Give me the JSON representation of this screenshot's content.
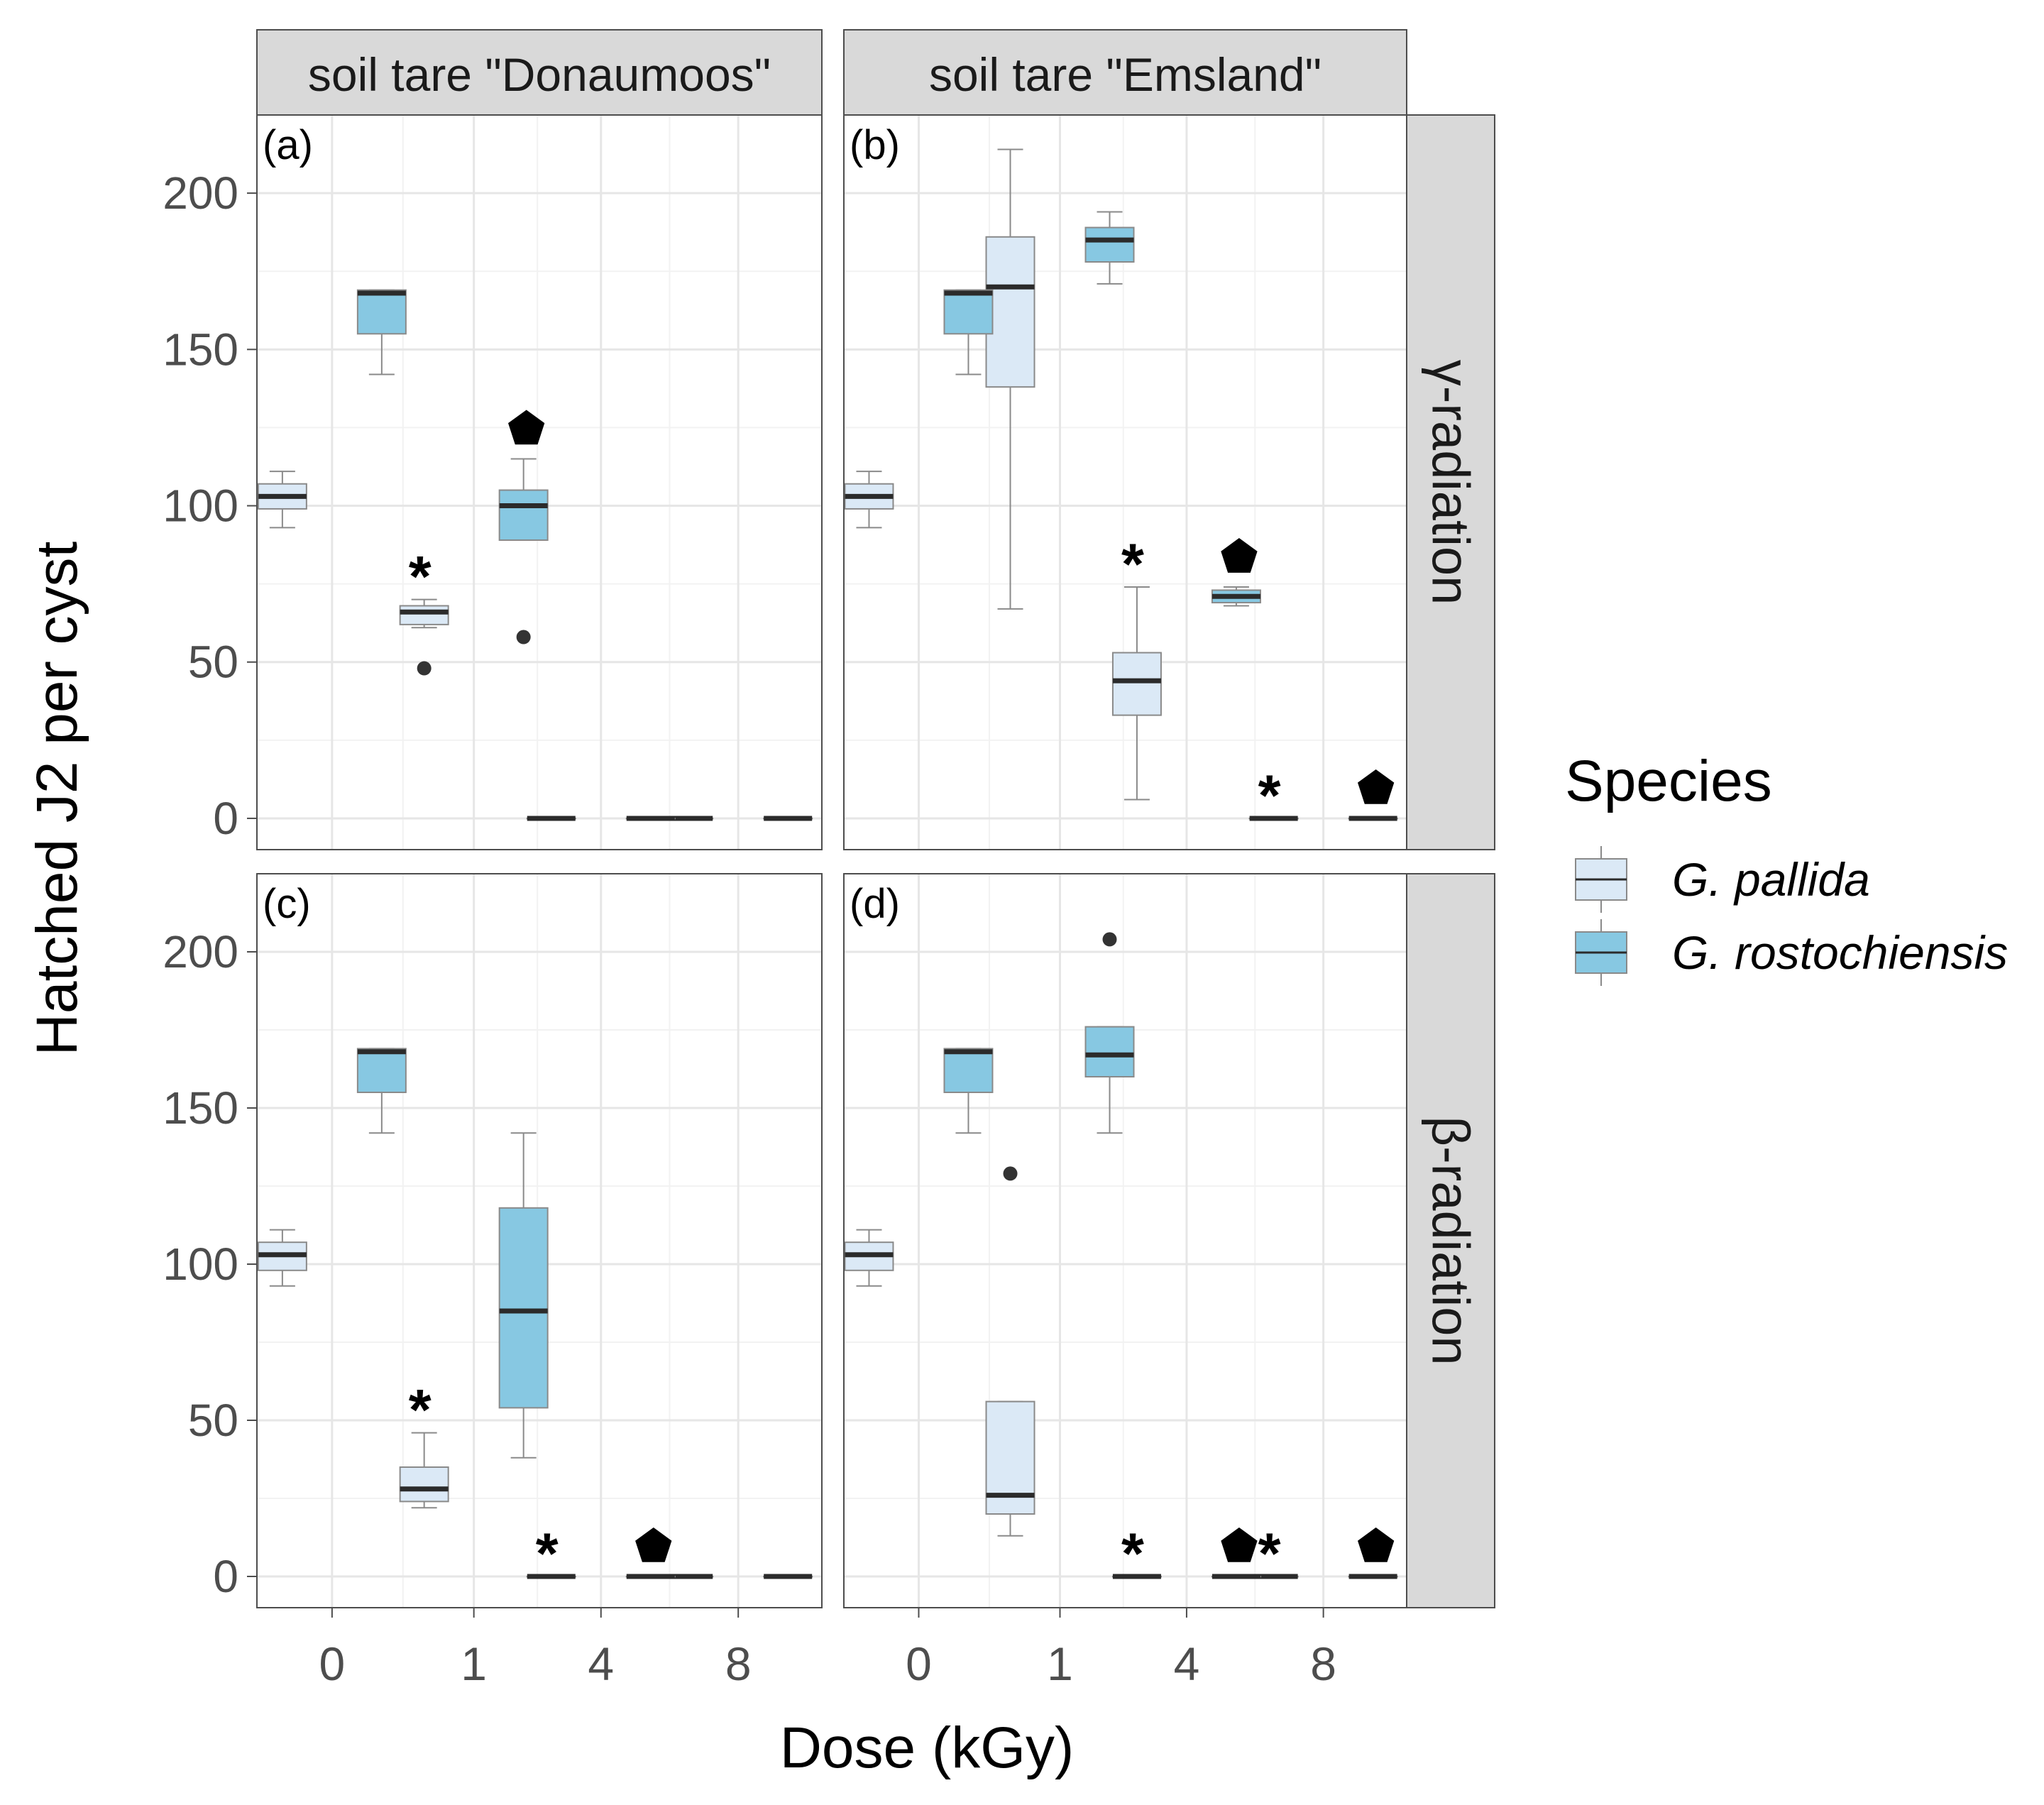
{
  "chart_data": {
    "type": "box",
    "xlabel": "Dose (kGy)",
    "ylabel": "Hatched J2 per cyst",
    "categories": [
      "0",
      "1",
      "4",
      "8"
    ],
    "y_ticks": [
      "0",
      "50",
      "100",
      "150",
      "200"
    ],
    "ylim": [
      -10,
      225
    ],
    "grid": true,
    "col_strips": [
      "soil tare \"Donaumoos\"",
      "soil tare \"Emsland\""
    ],
    "row_strips": [
      "γ-radiation",
      "β-radiation"
    ],
    "legend": {
      "title": "Species",
      "position": "right",
      "items": [
        {
          "label": "G. pallida",
          "color": "#dbe9f6"
        },
        {
          "label": "G. rostochiensis",
          "color": "#87c8e2"
        }
      ]
    },
    "panels": [
      {
        "tag": "(a)",
        "row": 0,
        "col": 0,
        "series": [
          {
            "name": "G. pallida",
            "boxes": [
              {
                "x": "0",
                "min": 93,
                "q1": 99,
                "median": 103,
                "q3": 107,
                "max": 111,
                "outliers": [],
                "mark": ""
              },
              {
                "x": "1",
                "min": 61,
                "q1": 62,
                "median": 66,
                "q3": 68,
                "max": 70,
                "outliers": [
                  48
                ],
                "mark": "*"
              },
              {
                "x": "4",
                "min": 0,
                "q1": 0,
                "median": 0,
                "q3": 0,
                "max": 0,
                "outliers": [],
                "mark": ""
              },
              {
                "x": "8",
                "min": 0,
                "q1": 0,
                "median": 0,
                "q3": 0,
                "max": 0,
                "outliers": [],
                "mark": ""
              }
            ]
          },
          {
            "name": "G. rostochiensis",
            "boxes": [
              {
                "x": "0",
                "min": 142,
                "q1": 155,
                "median": 168,
                "q3": 169,
                "max": 169,
                "outliers": [],
                "mark": ""
              },
              {
                "x": "1",
                "min": 89,
                "q1": 89,
                "median": 100,
                "q3": 105,
                "max": 115,
                "outliers": [
                  58
                ],
                "mark": "pentagon"
              },
              {
                "x": "4",
                "min": 0,
                "q1": 0,
                "median": 0,
                "q3": 0,
                "max": 0,
                "outliers": [],
                "mark": ""
              },
              {
                "x": "8",
                "min": 0,
                "q1": 0,
                "median": 0,
                "q3": 0,
                "max": 0,
                "outliers": [],
                "mark": ""
              }
            ]
          }
        ]
      },
      {
        "tag": "(b)",
        "row": 0,
        "col": 1,
        "series": [
          {
            "name": "G. pallida",
            "boxes": [
              {
                "x": "0",
                "min": 93,
                "q1": 99,
                "median": 103,
                "q3": 107,
                "max": 111,
                "outliers": [],
                "mark": ""
              },
              {
                "x": "1",
                "min": 67,
                "q1": 138,
                "median": 170,
                "q3": 186,
                "max": 214,
                "outliers": [],
                "mark": ""
              },
              {
                "x": "4",
                "min": 6,
                "q1": 33,
                "median": 44,
                "q3": 53,
                "max": 74,
                "outliers": [],
                "mark": "*"
              },
              {
                "x": "8",
                "min": 0,
                "q1": 0,
                "median": 0,
                "q3": 0,
                "max": 0,
                "outliers": [],
                "mark": "*"
              }
            ]
          },
          {
            "name": "G. rostochiensis",
            "boxes": [
              {
                "x": "0",
                "min": 142,
                "q1": 155,
                "median": 168,
                "q3": 169,
                "max": 169,
                "outliers": [],
                "mark": ""
              },
              {
                "x": "1",
                "min": 171,
                "q1": 178,
                "median": 185,
                "q3": 189,
                "max": 194,
                "outliers": [],
                "mark": ""
              },
              {
                "x": "4",
                "min": 68,
                "q1": 69,
                "median": 71,
                "q3": 73,
                "max": 74,
                "outliers": [],
                "mark": "pentagon"
              },
              {
                "x": "8",
                "min": 0,
                "q1": 0,
                "median": 0,
                "q3": 0,
                "max": 0,
                "outliers": [],
                "mark": "pentagon"
              }
            ]
          }
        ]
      },
      {
        "tag": "(c)",
        "row": 1,
        "col": 0,
        "series": [
          {
            "name": "G. pallida",
            "boxes": [
              {
                "x": "0",
                "min": 93,
                "q1": 98,
                "median": 103,
                "q3": 107,
                "max": 111,
                "outliers": [],
                "mark": ""
              },
              {
                "x": "1",
                "min": 22,
                "q1": 24,
                "median": 28,
                "q3": 35,
                "max": 46,
                "outliers": [],
                "mark": "*"
              },
              {
                "x": "4",
                "min": 0,
                "q1": 0,
                "median": 0,
                "q3": 0,
                "max": 0,
                "outliers": [],
                "mark": "*"
              },
              {
                "x": "8",
                "min": 0,
                "q1": 0,
                "median": 0,
                "q3": 0,
                "max": 0,
                "outliers": [],
                "mark": ""
              }
            ]
          },
          {
            "name": "G. rostochiensis",
            "boxes": [
              {
                "x": "0",
                "min": 142,
                "q1": 155,
                "median": 168,
                "q3": 169,
                "max": 169,
                "outliers": [],
                "mark": ""
              },
              {
                "x": "1",
                "min": 38,
                "q1": 54,
                "median": 85,
                "q3": 118,
                "max": 142,
                "outliers": [],
                "mark": ""
              },
              {
                "x": "4",
                "min": 0,
                "q1": 0,
                "median": 0,
                "q3": 0,
                "max": 0,
                "outliers": [],
                "mark": "pentagon"
              },
              {
                "x": "8",
                "min": 0,
                "q1": 0,
                "median": 0,
                "q3": 0,
                "max": 0,
                "outliers": [],
                "mark": ""
              }
            ]
          }
        ]
      },
      {
        "tag": "(d)",
        "row": 1,
        "col": 1,
        "series": [
          {
            "name": "G. pallida",
            "boxes": [
              {
                "x": "0",
                "min": 93,
                "q1": 98,
                "median": 103,
                "q3": 107,
                "max": 111,
                "outliers": [],
                "mark": ""
              },
              {
                "x": "1",
                "min": 13,
                "q1": 20,
                "median": 26,
                "q3": 56,
                "max": 56,
                "outliers": [
                  129
                ],
                "mark": ""
              },
              {
                "x": "4",
                "min": 0,
                "q1": 0,
                "median": 0,
                "q3": 0,
                "max": 0,
                "outliers": [],
                "mark": "*"
              },
              {
                "x": "8",
                "min": 0,
                "q1": 0,
                "median": 0,
                "q3": 0,
                "max": 0,
                "outliers": [],
                "mark": "*"
              }
            ]
          },
          {
            "name": "G. rostochiensis",
            "boxes": [
              {
                "x": "0",
                "min": 142,
                "q1": 155,
                "median": 168,
                "q3": 169,
                "max": 169,
                "outliers": [],
                "mark": ""
              },
              {
                "x": "1",
                "min": 142,
                "q1": 160,
                "median": 167,
                "q3": 176,
                "max": 176,
                "outliers": [
                  204
                ],
                "mark": ""
              },
              {
                "x": "4",
                "min": 0,
                "q1": 0,
                "median": 0,
                "q3": 0,
                "max": 0,
                "outliers": [],
                "mark": "pentagon"
              },
              {
                "x": "8",
                "min": 0,
                "q1": 0,
                "median": 0,
                "q3": 0,
                "max": 0,
                "outliers": [],
                "mark": "pentagon"
              }
            ]
          }
        ]
      }
    ]
  }
}
